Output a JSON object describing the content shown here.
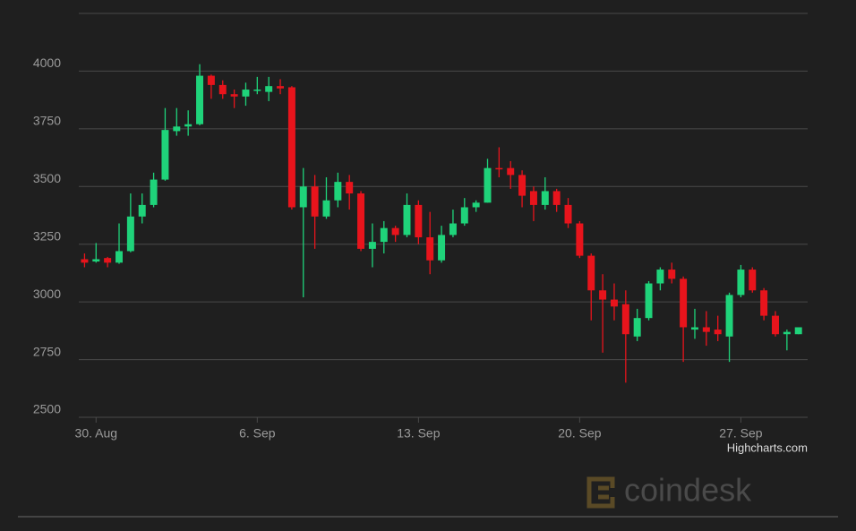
{
  "chart_data": {
    "type": "candlestick",
    "xlim": [
      -0.5,
      62.8
    ],
    "xticks": [
      {
        "value": 1,
        "label": "30. Aug"
      },
      {
        "value": 15,
        "label": "6. Sep"
      },
      {
        "value": 29,
        "label": "13. Sep"
      },
      {
        "value": 43,
        "label": "20. Sep"
      },
      {
        "value": 57,
        "label": "27. Sep"
      }
    ],
    "ylim": [
      2500,
      4250
    ],
    "yticks": [
      2500,
      2750,
      3000,
      3250,
      3500,
      3750,
      4000
    ],
    "grid": true,
    "up_color": "#1fd37a",
    "down_color": "#e8141c",
    "open": [
      3185,
      3175,
      3190,
      3170,
      3220,
      3370,
      3420,
      3530,
      3740,
      3760,
      3770,
      3980,
      3940,
      3900,
      3890,
      3915,
      3910,
      3935,
      3930,
      3410,
      3500,
      3370,
      3440,
      3520,
      3470,
      3230,
      3260,
      3320,
      3290,
      3420,
      3280,
      3180,
      3290,
      3340,
      3410,
      3430,
      3580,
      3580,
      3550,
      3480,
      3420,
      3480,
      3420,
      3340,
      3200,
      3050,
      3010,
      2990,
      2850,
      2930,
      3080,
      3140,
      3100,
      2880,
      2890,
      2880,
      2850,
      3030,
      3140,
      3050,
      2940,
      2860,
      2860
    ],
    "high": [
      3210,
      3255,
      3195,
      3340,
      3470,
      3470,
      3560,
      3840,
      3840,
      3830,
      4030,
      3985,
      3960,
      3920,
      3950,
      3975,
      3975,
      3965,
      3935,
      3580,
      3550,
      3540,
      3560,
      3550,
      3480,
      3340,
      3350,
      3330,
      3470,
      3440,
      3390,
      3330,
      3400,
      3450,
      3440,
      3620,
      3670,
      3610,
      3570,
      3500,
      3540,
      3490,
      3450,
      3350,
      3210,
      3120,
      3080,
      3050,
      2970,
      3090,
      3150,
      3170,
      3110,
      2970,
      2960,
      2940,
      3040,
      3160,
      3150,
      3060,
      2960,
      2880,
      2890
    ],
    "low": [
      3150,
      3170,
      3150,
      3165,
      3215,
      3340,
      3410,
      3525,
      3720,
      3720,
      3765,
      3880,
      3880,
      3840,
      3850,
      3900,
      3870,
      3900,
      3400,
      3020,
      3230,
      3360,
      3410,
      3400,
      3220,
      3150,
      3210,
      3260,
      3280,
      3250,
      3120,
      3170,
      3280,
      3330,
      3390,
      3430,
      3540,
      3490,
      3410,
      3350,
      3400,
      3390,
      3320,
      3190,
      2920,
      2780,
      2920,
      2650,
      2830,
      2920,
      3050,
      3080,
      2740,
      2840,
      2810,
      2830,
      2740,
      3020,
      3040,
      2920,
      2850,
      2790,
      2860
    ],
    "close": [
      3170,
      3185,
      3170,
      3220,
      3370,
      3420,
      3530,
      3745,
      3760,
      3770,
      3980,
      3940,
      3900,
      3890,
      3920,
      3920,
      3935,
      3925,
      3410,
      3500,
      3370,
      3440,
      3520,
      3470,
      3230,
      3260,
      3320,
      3290,
      3420,
      3280,
      3180,
      3290,
      3340,
      3410,
      3430,
      3580,
      3575,
      3550,
      3460,
      3420,
      3480,
      3420,
      3340,
      3200,
      3050,
      3010,
      2980,
      2860,
      2930,
      3080,
      3140,
      3100,
      2890,
      2890,
      2870,
      2860,
      3030,
      3140,
      3050,
      2940,
      2860,
      2870,
      2890
    ],
    "credit": "Highcharts.com",
    "watermark": "coindesk"
  }
}
